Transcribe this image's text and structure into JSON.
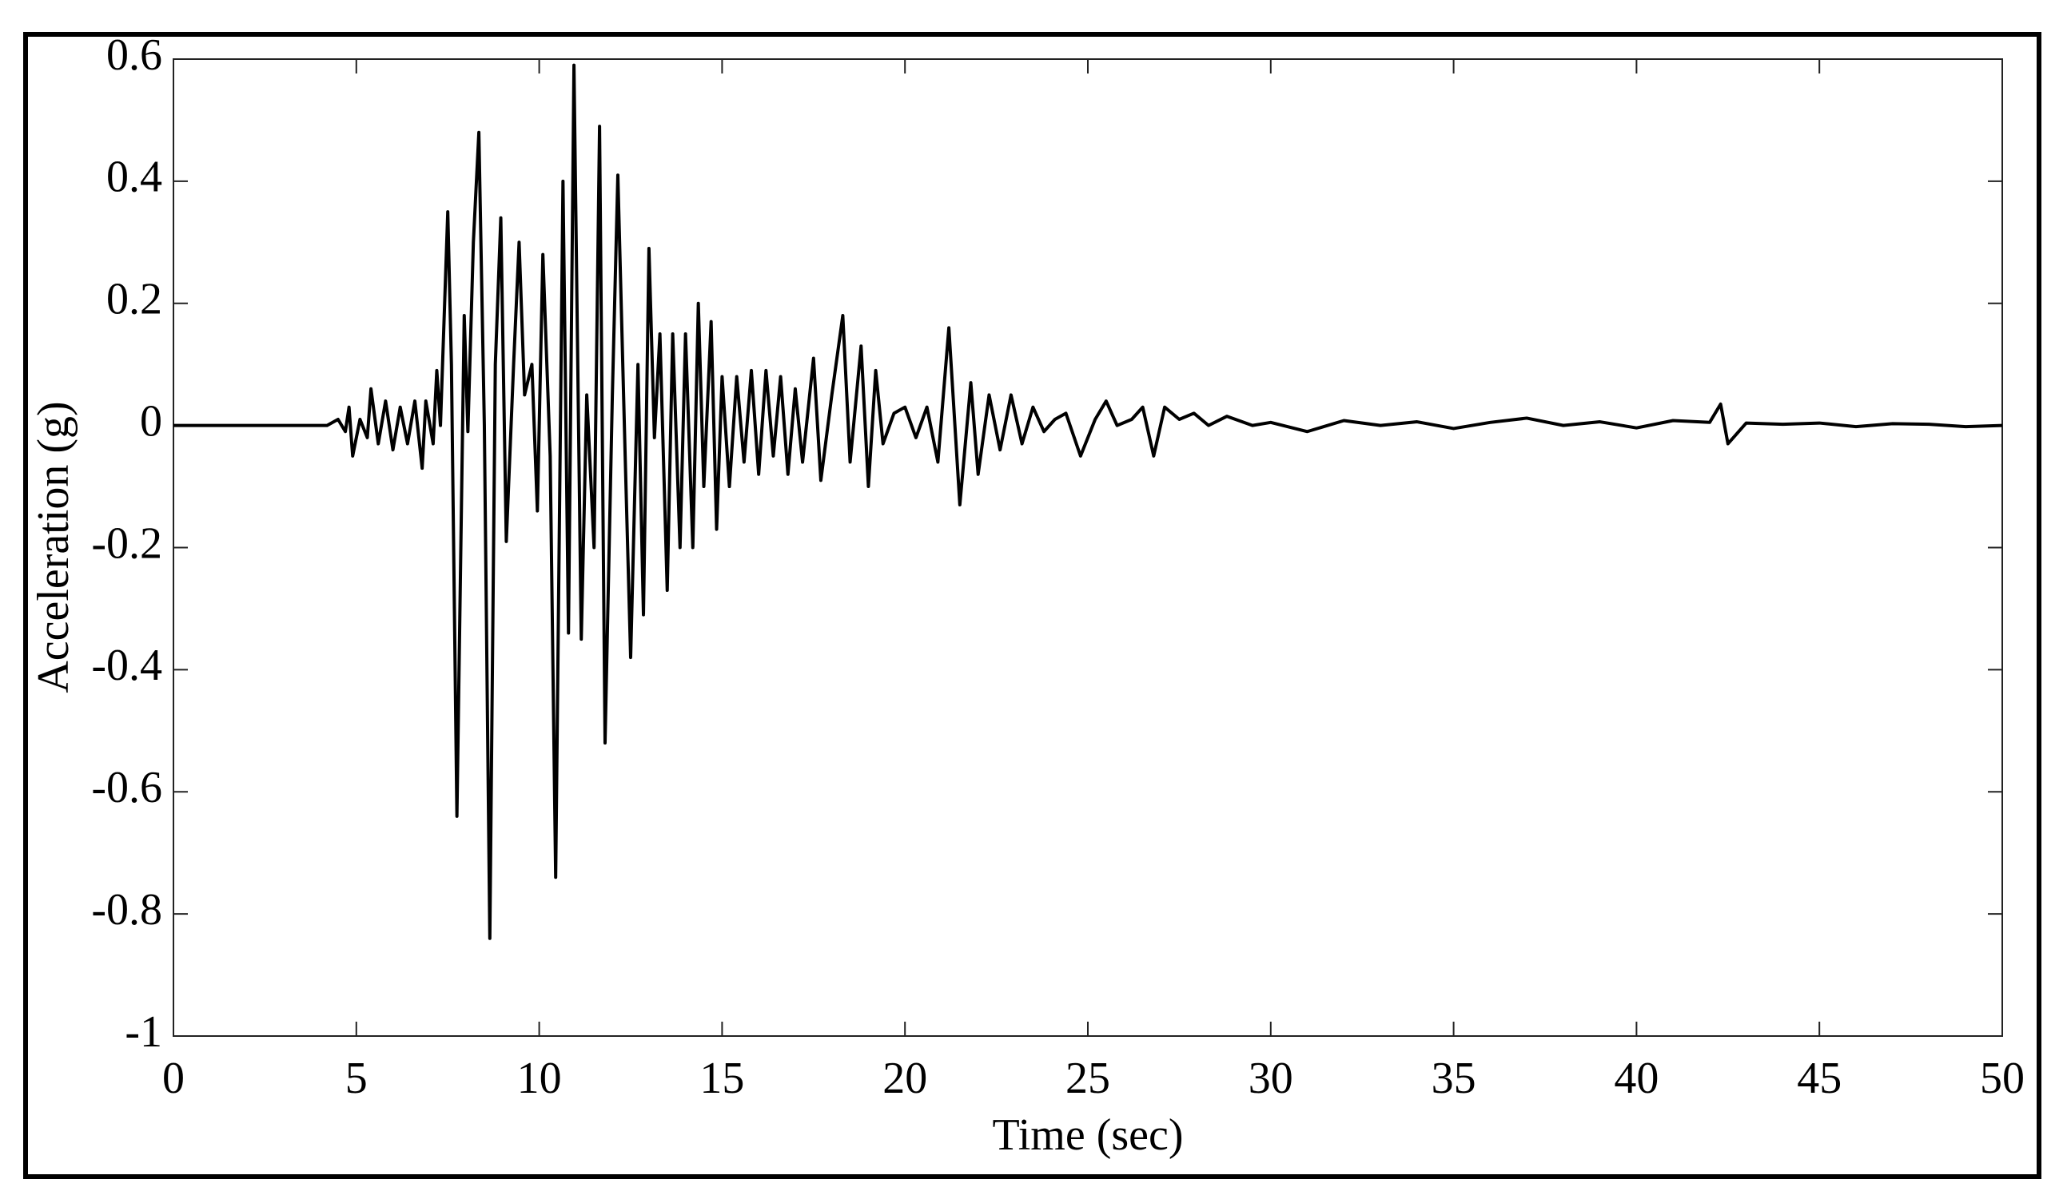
{
  "chart_data": {
    "type": "line",
    "x_label": "Time (sec)",
    "y_label": "Acceleration (g)",
    "color": "#000000",
    "x": [
      0,
      4.2,
      4.5,
      4.7,
      4.8,
      4.9,
      5.1,
      5.3,
      5.4,
      5.6,
      5.8,
      6.0,
      6.2,
      6.4,
      6.6,
      6.8,
      6.9,
      7.1,
      7.2,
      7.3,
      7.5,
      7.6,
      7.75,
      7.95,
      8.05,
      8.2,
      8.35,
      8.5,
      8.65,
      8.8,
      8.95,
      9.1,
      9.3,
      9.45,
      9.6,
      9.8,
      9.95,
      10.1,
      10.3,
      10.45,
      10.65,
      10.8,
      10.95,
      11.15,
      11.3,
      11.5,
      11.65,
      11.8,
      12.0,
      12.15,
      12.35,
      12.5,
      12.7,
      12.85,
      13.0,
      13.15,
      13.3,
      13.5,
      13.65,
      13.85,
      14.0,
      14.2,
      14.35,
      14.5,
      14.7,
      14.85,
      15.0,
      15.2,
      15.4,
      15.6,
      15.8,
      16.0,
      16.2,
      16.4,
      16.6,
      16.8,
      17.0,
      17.2,
      17.5,
      17.7,
      18.0,
      18.3,
      18.5,
      18.8,
      19.0,
      19.2,
      19.4,
      19.7,
      20.0,
      20.3,
      20.6,
      20.9,
      21.2,
      21.5,
      21.8,
      22.0,
      22.3,
      22.6,
      22.9,
      23.2,
      23.5,
      23.8,
      24.1,
      24.4,
      24.8,
      25.2,
      25.5,
      25.8,
      26.2,
      26.5,
      26.8,
      27.1,
      27.5,
      27.9,
      28.3,
      28.8,
      29.5,
      30,
      31,
      32,
      33,
      34,
      35,
      36,
      37,
      38,
      39,
      40,
      41,
      42,
      42.3,
      42.5,
      43,
      44,
      45,
      46,
      47,
      48,
      49,
      50
    ],
    "values": [
      0,
      0,
      0.01,
      -0.01,
      0.03,
      -0.05,
      0.01,
      -0.02,
      0.06,
      -0.03,
      0.04,
      -0.04,
      0.03,
      -0.03,
      0.04,
      -0.07,
      0.04,
      -0.03,
      0.09,
      0.0,
      0.35,
      0.1,
      -0.64,
      0.18,
      -0.01,
      0.3,
      0.48,
      0.0,
      -0.84,
      0.1,
      0.34,
      -0.19,
      0.1,
      0.3,
      0.05,
      0.1,
      -0.14,
      0.28,
      -0.05,
      -0.74,
      0.4,
      -0.34,
      0.59,
      -0.35,
      0.05,
      -0.2,
      0.49,
      -0.52,
      0.05,
      0.41,
      -0.05,
      -0.38,
      0.1,
      -0.31,
      0.29,
      -0.02,
      0.15,
      -0.27,
      0.15,
      -0.2,
      0.15,
      -0.2,
      0.2,
      -0.1,
      0.17,
      -0.17,
      0.08,
      -0.1,
      0.08,
      -0.06,
      0.09,
      -0.08,
      0.09,
      -0.05,
      0.08,
      -0.08,
      0.06,
      -0.06,
      0.11,
      -0.09,
      0.05,
      0.18,
      -0.06,
      0.13,
      -0.1,
      0.09,
      -0.03,
      0.02,
      0.03,
      -0.02,
      0.03,
      -0.06,
      0.16,
      -0.13,
      0.07,
      -0.08,
      0.05,
      -0.04,
      0.05,
      -0.03,
      0.03,
      -0.01,
      0.01,
      0.02,
      -0.05,
      0.01,
      0.04,
      0.0,
      0.01,
      0.03,
      -0.05,
      0.03,
      0.01,
      0.02,
      0.0,
      0.015,
      0.0,
      0.005,
      -0.01,
      0.008,
      0.0,
      0.006,
      -0.005,
      0.005,
      0.012,
      0.0,
      0.006,
      -0.004,
      0.008,
      0.005,
      0.035,
      -0.03,
      0.004,
      0.002,
      0.004,
      -0.002,
      0.003,
      0.002,
      -0.002,
      0.0
    ],
    "xlim": [
      0,
      50
    ],
    "xticks": [
      0,
      5,
      10,
      15,
      20,
      25,
      30,
      35,
      40,
      45,
      50
    ],
    "ylim": [
      -1,
      0.6
    ],
    "yticks": [
      -1,
      -0.8,
      -0.6,
      -0.4,
      -0.2,
      0,
      0.2,
      0.4,
      0.6
    ],
    "grid": false
  }
}
